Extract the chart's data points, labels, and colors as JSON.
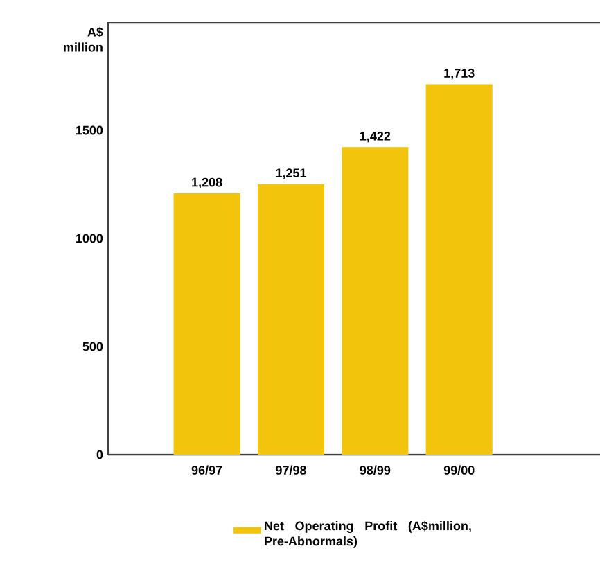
{
  "chart_data": {
    "type": "bar",
    "ylabel": "A$ million",
    "categories": [
      "96/97",
      "97/98",
      "98/99",
      "99/00"
    ],
    "series": [
      {
        "name": "Net Operating Profit (A$million, Pre-Abnormals)",
        "color": "#f2c40c",
        "values": [
          1208,
          1251,
          1422,
          1713
        ]
      }
    ],
    "value_labels": [
      "1,208",
      "1,251",
      "1,422",
      "1,713"
    ],
    "ylim": [
      0,
      2000
    ],
    "yticks": [
      0,
      500,
      1000,
      1500
    ],
    "grid": false,
    "legend": "bottom"
  }
}
